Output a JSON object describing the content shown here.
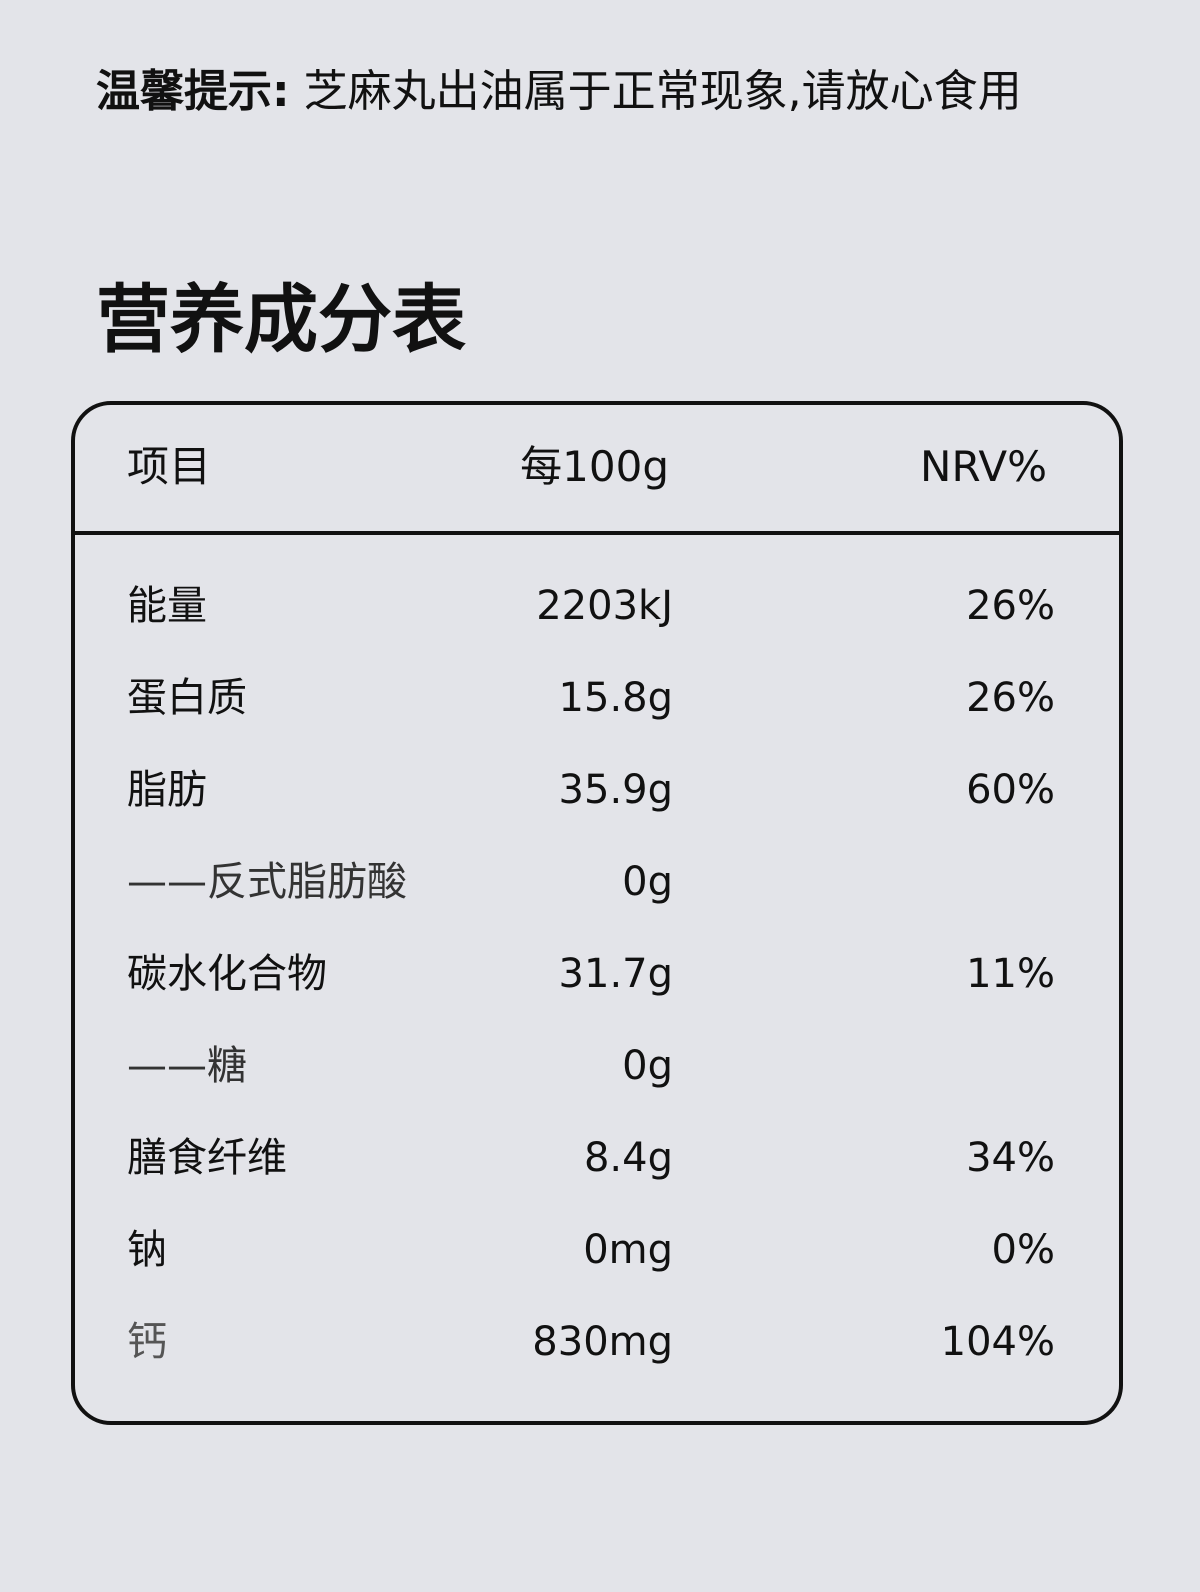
{
  "notice": {
    "label": "温馨提示:",
    "text": " 芝麻丸出油属于正常现象,请放心食用"
  },
  "title": "营养成分表",
  "table": {
    "headers": {
      "item": "项目",
      "per100g": "每100g",
      "nrv": "NRV%"
    },
    "rows": [
      {
        "name": "能量",
        "value": "2203kJ",
        "nrv": "26%"
      },
      {
        "name": "蛋白质",
        "value": "15.8g",
        "nrv": "26%"
      },
      {
        "name": "脂肪",
        "value": "35.9g",
        "nrv": "60%"
      },
      {
        "name": "——反式脂肪酸",
        "value": "0g",
        "nrv": ""
      },
      {
        "name": "碳水化合物",
        "value": "31.7g",
        "nrv": "11%"
      },
      {
        "name": "——糖",
        "value": "0g",
        "nrv": ""
      },
      {
        "name": "膳食纤维",
        "value": "8.4g",
        "nrv": "34%"
      },
      {
        "name": "钠",
        "value": "0mg",
        "nrv": "0%"
      },
      {
        "name": "钙",
        "value": "830mg",
        "nrv": "104%"
      }
    ]
  }
}
